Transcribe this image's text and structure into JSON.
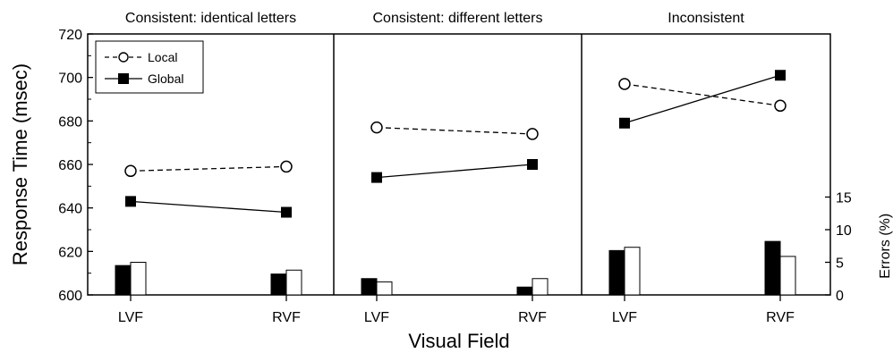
{
  "chart_data": {
    "type": "line",
    "ylabel": "Response Time (msec)",
    "xlabel": "Visual Field",
    "y2label": "Errors (%)",
    "ylim": [
      600,
      720
    ],
    "yticks": [
      600,
      620,
      640,
      660,
      680,
      700,
      720
    ],
    "y2lim": [
      0,
      40
    ],
    "y2ticks": [
      0,
      5,
      10,
      15
    ],
    "categories": [
      "LVF",
      "RVF"
    ],
    "legend": {
      "position": "top-left",
      "entries": [
        "Local",
        "Global"
      ]
    },
    "panels": [
      {
        "title": "Consistent: identical letters",
        "series": [
          {
            "name": "Local",
            "style": "dashed-open-circle",
            "values": [
              657,
              659
            ]
          },
          {
            "name": "Global",
            "style": "solid-filled-square",
            "values": [
              643,
              638
            ]
          }
        ],
        "errors": {
          "Global": [
            4.5,
            3.2
          ],
          "Local": [
            5.0,
            3.8
          ]
        }
      },
      {
        "title": "Consistent: different letters",
        "series": [
          {
            "name": "Local",
            "style": "dashed-open-circle",
            "values": [
              677,
              674
            ]
          },
          {
            "name": "Global",
            "style": "solid-filled-square",
            "values": [
              654,
              660
            ]
          }
        ],
        "errors": {
          "Global": [
            2.5,
            1.2
          ],
          "Local": [
            2.0,
            2.5
          ]
        }
      },
      {
        "title": "Inconsistent",
        "series": [
          {
            "name": "Local",
            "style": "dashed-open-circle",
            "values": [
              697,
              687
            ]
          },
          {
            "name": "Global",
            "style": "solid-filled-square",
            "values": [
              679,
              701
            ]
          }
        ],
        "errors": {
          "Global": [
            6.8,
            8.2
          ],
          "Local": [
            7.3,
            5.9
          ]
        }
      }
    ]
  }
}
